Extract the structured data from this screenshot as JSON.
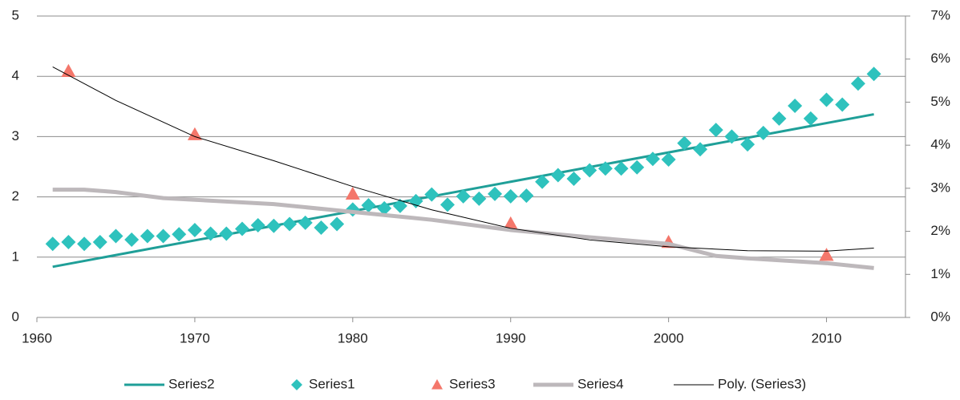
{
  "chart_data": {
    "type": "line",
    "xlim": [
      1960,
      2015
    ],
    "xticks": [
      1960,
      1970,
      1980,
      1990,
      2000,
      2010
    ],
    "ylim": [
      0,
      5
    ],
    "yticks": [
      0,
      1,
      2,
      3,
      4,
      5
    ],
    "y2lim": [
      0,
      7
    ],
    "y2ticks": [
      {
        "value": 0,
        "label": "0%"
      },
      {
        "value": 1,
        "label": "1%"
      },
      {
        "value": 2,
        "label": "2%"
      },
      {
        "value": 3,
        "label": "3%"
      },
      {
        "value": 4,
        "label": "4%"
      },
      {
        "value": 5,
        "label": "5%"
      },
      {
        "value": 6,
        "label": "6%"
      },
      {
        "value": 7,
        "label": "7%"
      }
    ],
    "grid": true,
    "legend": "bottom",
    "series": [
      {
        "name": "Series2",
        "color": "#1f9f98",
        "mark": "line",
        "width": 3,
        "x": [
          1961,
          2013
        ],
        "values": [
          0.84,
          3.37
        ]
      },
      {
        "name": "Series1",
        "color": "#2ec2bd",
        "mark": "diamond",
        "x": [
          1961,
          1962,
          1963,
          1964,
          1965,
          1966,
          1967,
          1968,
          1969,
          1970,
          1971,
          1972,
          1973,
          1974,
          1975,
          1976,
          1977,
          1978,
          1979,
          1980,
          1981,
          1982,
          1983,
          1984,
          1985,
          1986,
          1987,
          1988,
          1989,
          1990,
          1991,
          1992,
          1993,
          1994,
          1995,
          1996,
          1997,
          1998,
          1999,
          2000,
          2001,
          2002,
          2003,
          2004,
          2005,
          2006,
          2007,
          2008,
          2009,
          2010,
          2011,
          2012,
          2013
        ],
        "values": [
          1.22,
          1.25,
          1.22,
          1.25,
          1.35,
          1.29,
          1.35,
          1.35,
          1.38,
          1.45,
          1.39,
          1.39,
          1.47,
          1.53,
          1.52,
          1.55,
          1.57,
          1.49,
          1.55,
          1.79,
          1.86,
          1.81,
          1.85,
          1.93,
          2.04,
          1.87,
          2.01,
          1.97,
          2.05,
          2.01,
          2.02,
          2.25,
          2.36,
          2.3,
          2.44,
          2.47,
          2.47,
          2.49,
          2.63,
          2.62,
          2.89,
          2.79,
          3.11,
          3.0,
          2.87,
          3.06,
          3.3,
          3.51,
          3.3,
          3.61,
          3.53,
          3.88,
          4.04
        ]
      },
      {
        "name": "Series3",
        "color": "#f4776b",
        "mark": "triangle",
        "axis": "y2",
        "x": [
          1962,
          1970,
          1980,
          1990,
          2000,
          2010
        ],
        "values": [
          5.72,
          4.25,
          2.87,
          2.18,
          1.75,
          1.45
        ]
      },
      {
        "name": "Series4",
        "color": "#bdb8bb",
        "mark": "line",
        "width": 5,
        "x": [
          1961,
          1963,
          1965,
          1968,
          1975,
          1980,
          1985,
          1990,
          1995,
          2000,
          2003,
          2005,
          2010,
          2013
        ],
        "values": [
          2.12,
          2.12,
          2.08,
          1.98,
          1.88,
          1.75,
          1.62,
          1.45,
          1.33,
          1.22,
          1.02,
          0.98,
          0.9,
          0.82
        ]
      },
      {
        "name": "Poly. (Series3)",
        "color": "#000000",
        "mark": "line",
        "width": 1,
        "axis": "y2",
        "x": [
          1961,
          1965,
          1970,
          1975,
          1980,
          1985,
          1990,
          1995,
          2000,
          2005,
          2010,
          2013
        ],
        "values": [
          5.82,
          5.04,
          4.2,
          3.64,
          3.04,
          2.5,
          2.07,
          1.8,
          1.64,
          1.55,
          1.54,
          1.61
        ]
      }
    ]
  }
}
